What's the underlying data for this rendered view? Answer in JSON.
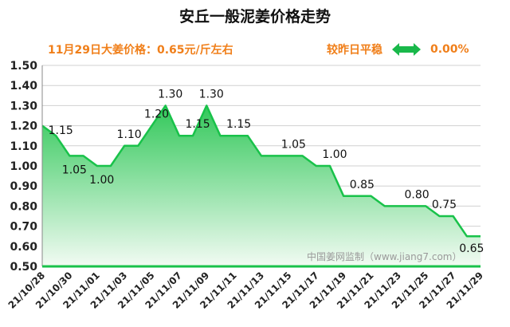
{
  "chart_data": {
    "type": "area",
    "title": "安丘一般泥姜价格走势",
    "subtitle": "11月29日大姜价格：0.65元/斤左右",
    "change": {
      "label": "较昨日平稳",
      "value": "0.00%"
    },
    "watermark": "中国姜网监制（www.jiang7.com）",
    "xlabel": "",
    "ylabel": "",
    "ylim": [
      0.5,
      1.5
    ],
    "yticks": [
      "0.50",
      "0.60",
      "0.70",
      "0.80",
      "0.90",
      "1.00",
      "1.10",
      "1.20",
      "1.30",
      "1.40",
      "1.50"
    ],
    "grid": true,
    "x": [
      "21/10/28",
      "21/10/29",
      "21/10/30",
      "21/10/31",
      "21/11/01",
      "21/11/02",
      "21/11/03",
      "21/11/04",
      "21/11/05",
      "21/11/06",
      "21/11/07",
      "21/11/08",
      "21/11/09",
      "21/11/10",
      "21/11/11",
      "21/11/12",
      "21/11/13",
      "21/11/14",
      "21/11/15",
      "21/11/16",
      "21/11/17",
      "21/11/18",
      "21/11/19",
      "21/11/20",
      "21/11/21",
      "21/11/22",
      "21/11/23",
      "21/11/24",
      "21/11/25",
      "21/11/26",
      "21/11/27",
      "21/11/28",
      "21/11/29"
    ],
    "xtick_labels": [
      "21/10/28",
      "21/10/30",
      "21/11/01",
      "21/11/03",
      "21/11/05",
      "21/11/07",
      "21/11/09",
      "21/11/11",
      "21/11/13",
      "21/11/15",
      "21/11/17",
      "21/11/19",
      "21/11/21",
      "21/11/23",
      "21/11/25",
      "21/11/27",
      "21/11/29"
    ],
    "values": [
      1.2,
      1.15,
      1.05,
      1.05,
      1.0,
      1.0,
      1.1,
      1.1,
      1.2,
      1.3,
      1.15,
      1.15,
      1.3,
      1.15,
      1.15,
      1.15,
      1.05,
      1.05,
      1.05,
      1.05,
      1.0,
      1.0,
      0.85,
      0.85,
      0.85,
      0.8,
      0.8,
      0.8,
      0.8,
      0.75,
      0.75,
      0.65,
      0.65
    ],
    "data_labels": [
      {
        "i": 1,
        "text": "1.15"
      },
      {
        "i": 2,
        "text": "1.05"
      },
      {
        "i": 4,
        "text": "1.00"
      },
      {
        "i": 6,
        "text": "1.10"
      },
      {
        "i": 8,
        "text": "1.20"
      },
      {
        "i": 9,
        "text": "1.30"
      },
      {
        "i": 11,
        "text": "1.15"
      },
      {
        "i": 12,
        "text": "1.30"
      },
      {
        "i": 14,
        "text": "1.15"
      },
      {
        "i": 18,
        "text": "1.05"
      },
      {
        "i": 21,
        "text": "1.00"
      },
      {
        "i": 23,
        "text": "0.85"
      },
      {
        "i": 27,
        "text": "0.80"
      },
      {
        "i": 29,
        "text": "0.75"
      },
      {
        "i": 31,
        "text": "0.65"
      }
    ],
    "colors": {
      "line": "#19c24a",
      "fill_top": "#32c85a",
      "fill_bottom": "#f2fbf3",
      "text_accent": "#f07f1a",
      "grid": "#d0d0d0"
    }
  }
}
